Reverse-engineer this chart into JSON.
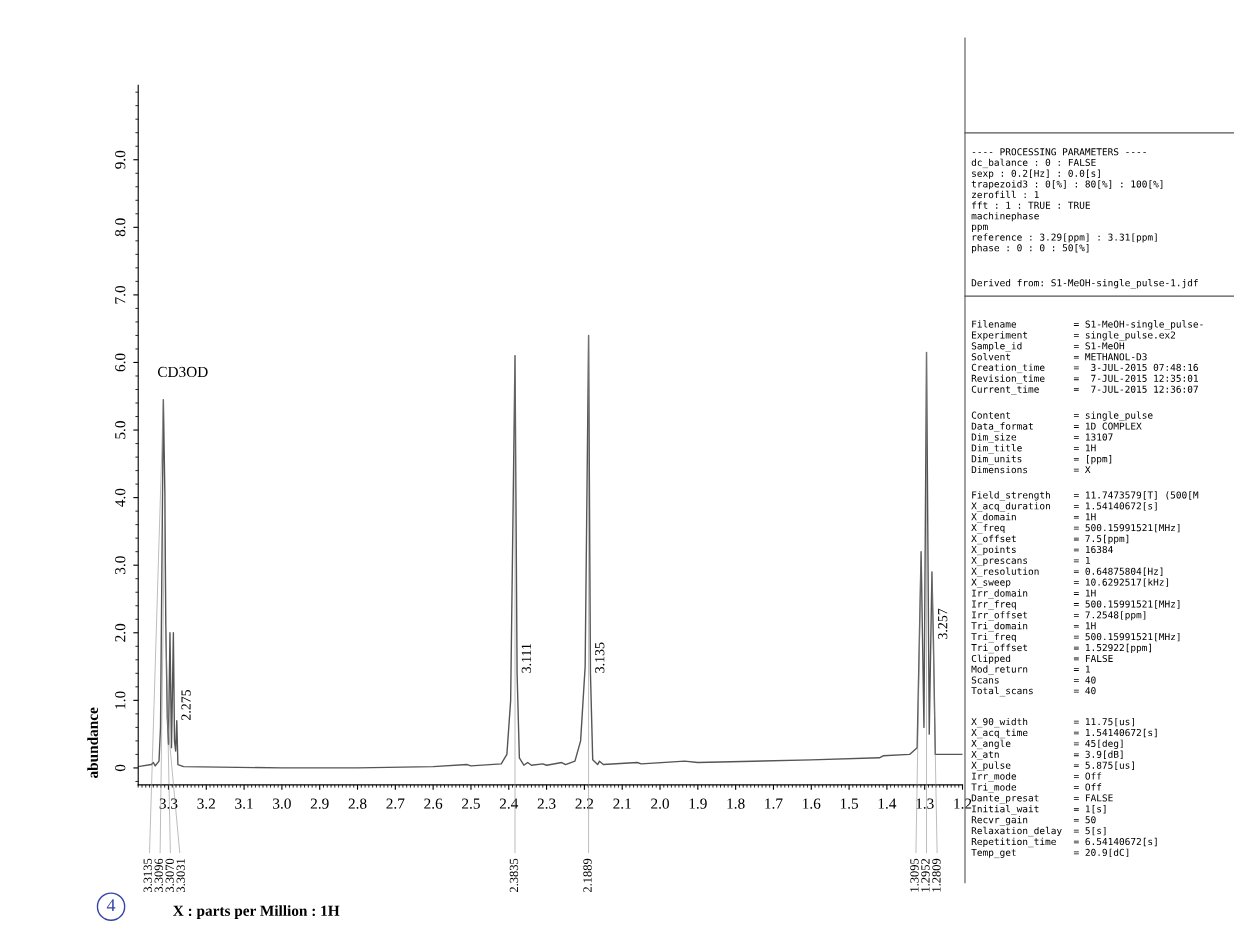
{
  "chart_data": {
    "type": "line",
    "ylabel": "abundance",
    "xlim": [
      3.38,
      1.2
    ],
    "ylim": [
      -0.25,
      10.1
    ],
    "xticks": [
      3.3,
      3.2,
      3.1,
      {
        "value": 3,
        "label": "3.0"
      },
      2.9,
      2.8,
      2.7,
      2.6,
      2.5,
      2.4,
      2.3,
      2.2,
      2.1,
      {
        "value": 2,
        "label": "2.0"
      },
      1.9,
      1.8,
      1.7,
      1.6,
      1.5,
      1.4,
      1.3,
      1.2
    ],
    "yticks": [
      0,
      {
        "value": 1,
        "label": "1.0"
      },
      {
        "value": 2,
        "label": "2.0"
      },
      {
        "value": 3,
        "label": "3.0"
      },
      {
        "value": 4,
        "label": "4.0"
      },
      {
        "value": 5,
        "label": "5.0"
      },
      {
        "value": 6,
        "label": "6.0"
      },
      {
        "value": 7,
        "label": "7.0"
      },
      {
        "value": 8,
        "label": "8.0"
      },
      {
        "value": 9,
        "label": "9.0"
      }
    ],
    "grid": false,
    "marker": "none",
    "line_style": "solid",
    "series": [
      {
        "color": "#555555",
        "x": [
          3.38,
          3.345,
          3.34,
          3.335,
          3.325,
          3.321,
          3.3135,
          3.3096,
          3.307,
          3.3031,
          3.3,
          3.296,
          3.292,
          3.29,
          3.287,
          3.284,
          3.281,
          3.278,
          3.275,
          3.26,
          3.0,
          2.8,
          2.6,
          2.51,
          2.5,
          2.42,
          2.405,
          2.395,
          2.3835,
          2.378,
          2.372,
          2.36,
          2.35,
          2.34,
          2.31,
          2.3,
          2.26,
          2.25,
          2.225,
          2.21,
          2.198,
          2.1889,
          2.184,
          2.178,
          2.165,
          2.16,
          2.15,
          2.06,
          2.05,
          1.935,
          1.9,
          1.6,
          1.42,
          1.41,
          1.34,
          1.32,
          1.3095,
          1.302,
          1.2952,
          1.288,
          1.2809,
          1.277,
          1.272,
          1.2
        ],
        "values": [
          0.02,
          0.05,
          0.08,
          0.03,
          0.1,
          0.6,
          5.45,
          4.1,
          2.1,
          0.75,
          0.35,
          2.0,
          0.3,
          0.95,
          2.0,
          0.4,
          0.25,
          0.7,
          0.05,
          0.02,
          0.0,
          0.0,
          0.02,
          0.05,
          0.03,
          0.06,
          0.2,
          1.0,
          6.1,
          1.4,
          0.15,
          0.04,
          0.08,
          0.04,
          0.06,
          0.04,
          0.08,
          0.05,
          0.1,
          0.4,
          1.5,
          6.4,
          1.4,
          0.12,
          0.05,
          0.1,
          0.05,
          0.08,
          0.06,
          0.1,
          0.08,
          0.12,
          0.15,
          0.18,
          0.2,
          0.3,
          3.2,
          0.6,
          6.15,
          0.5,
          2.9,
          1.9,
          0.2,
          0.2
        ]
      }
    ],
    "annotations": [
      "4",
      "X : parts per Million : 1H",
      "---- PROCESSING PARAMETERS ----\ndc_balance : 0 : FALSE\nsexp : 0.2[Hz] : 0.0[s]\ntrapezoid3 : 0[%] : 80[%] : 100[%]\nzerofill : 1\nfft : 1 : TRUE : TRUE\nmachinephase\nppm\nreference : 3.29[ppm] : 3.31[ppm]\nphase : 0 : 0 : 50[%]",
      "Derived from: S1-MeOH-single_pulse-1.jdf",
      "Filename          = S1-MeOH-single_pulse-\nExperiment        = single_pulse.ex2\nSample_id         = S1-MeOH\nSolvent           = METHANOL-D3\nCreation_time     =  3-JUL-2015 07:48:16\nRevision_time     =  7-JUL-2015 12:35:01\nCurrent_time      =  7-JUL-2015 12:36:07",
      "Content           = single_pulse\nData_format       = 1D COMPLEX\nDim_size          = 13107\nDim_title         = 1H\nDim_units         = [ppm]\nDimensions        = X",
      "Field_strength    = 11.7473579[T] (500[M\nX_acq_duration    = 1.54140672[s]\nX_domain          = 1H\nX_freq            = 500.15991521[MHz]\nX_offset          = 7.5[ppm]\nX_points          = 16384\nX_prescans        = 1\nX_resolution      = 0.64875804[Hz]\nX_sweep           = 10.6292517[kHz]\nIrr_domain        = 1H\nIrr_freq          = 500.15991521[MHz]\nIrr_offset        = 7.2548[ppm]\nTri_domain        = 1H\nTri_freq          = 500.15991521[MHz]\nTri_offset        = 1.52922[ppm]\nClipped           = FALSE\nMod_return        = 1\nScans             = 40\nTotal_scans       = 40",
      "X_90_width        = 11.75[us]\nX_acq_time        = 1.54140672[s]\nX_angle           = 45[deg]\nX_atn             = 3.9[dB]\nX_pulse           = 5.875[us]\nIrr_mode          = Off\nTri_mode          = Off\nDante_presat      = FALSE\nInitial_wait      = 1[s]\nRecvr_gain        = 50\nRelaxation_delay  = 5[s]\nRepetition_time   = 6.54140672[s]\nTemp_get          = 20.9[dC]",
      {
        "text": "CD3OD",
        "x": 3.3135,
        "y": 5.45
      },
      {
        "text": "2.275",
        "x": 3.278,
        "y": 0.7
      },
      {
        "text": "3.111",
        "x": 2.378,
        "y": 1.4
      },
      {
        "text": "3.135",
        "x": 2.184,
        "y": 1.4
      },
      {
        "text": "3.257",
        "x": 1.277,
        "y": 1.9
      },
      {
        "text": "3.3135",
        "x": 3.3135,
        "y": 5.45
      },
      {
        "text": "3.3096",
        "x": 3.3096,
        "y": 4.1
      },
      {
        "text": "3.3070",
        "x": 3.307,
        "y": 2.1
      },
      {
        "text": "3.3031",
        "x": 3.3031,
        "y": 0.75
      },
      {
        "text": "2.3835",
        "x": 2.3835,
        "y": 6.1
      },
      {
        "text": "2.1889",
        "x": 2.1889,
        "y": 6.4
      },
      {
        "text": "1.3095",
        "x": 1.3095,
        "y": 3.2
      },
      {
        "text": "1.2952",
        "x": 1.2952,
        "y": 6.15
      },
      {
        "text": "1.2809",
        "x": 1.2809,
        "y": 2.9
      }
    ]
  }
}
